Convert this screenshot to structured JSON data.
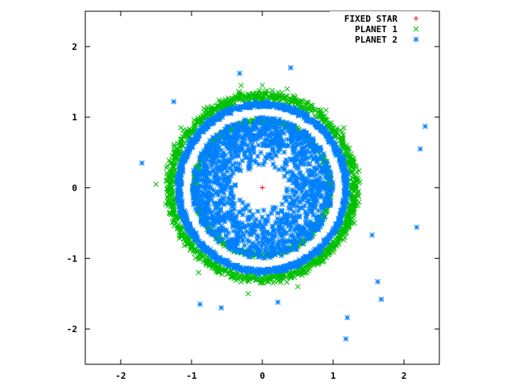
{
  "chart_data": {
    "type": "scatter",
    "title": "",
    "xlabel": "",
    "ylabel": "",
    "xlim": [
      -2.5,
      2.5
    ],
    "ylim": [
      -2.5,
      2.5
    ],
    "xticks": [
      -2,
      -1,
      0,
      1,
      2
    ],
    "yticks": [
      -2,
      -1,
      0,
      1,
      2
    ],
    "xtick_labels": [
      "-2",
      "-1",
      "0",
      "1",
      "2"
    ],
    "ytick_labels": [
      "-2",
      "-1",
      "0",
      "1",
      "2"
    ],
    "grid": false,
    "legend_position": "top-right",
    "series": [
      {
        "name": "FIXED STAR",
        "marker": "plus",
        "color": "#ff0000",
        "points": [
          [
            0,
            0
          ]
        ]
      },
      {
        "name": "PLANET 1",
        "marker": "cross",
        "color": "#00c000",
        "distribution": "ring",
        "ring_radii": [
          0.95,
          1.3
        ],
        "points": [
          [
            0.0,
            1.45
          ],
          [
            -0.3,
            1.45
          ],
          [
            0.35,
            1.4
          ],
          [
            -1.3,
            0.2
          ],
          [
            -1.5,
            0.05
          ],
          [
            1.3,
            -0.5
          ],
          [
            -0.2,
            -1.5
          ],
          [
            0.5,
            -1.4
          ],
          [
            -0.9,
            -1.2
          ],
          [
            1.15,
            0.85
          ],
          [
            -1.15,
            0.85
          ],
          [
            0.9,
            1.1
          ]
        ]
      },
      {
        "name": "PLANET 2",
        "marker": "star",
        "color": "#0080ff",
        "distribution": "disk_and_ring",
        "disk_radii": [
          0.3,
          1.0
        ],
        "ring_radius": 1.18,
        "points": [
          [
            0.4,
            1.7
          ],
          [
            -0.32,
            1.62
          ],
          [
            -1.25,
            1.22
          ],
          [
            2.3,
            0.87
          ],
          [
            2.23,
            0.55
          ],
          [
            -1.7,
            0.35
          ],
          [
            2.18,
            -0.56
          ],
          [
            1.55,
            -0.67
          ],
          [
            1.63,
            -1.33
          ],
          [
            1.68,
            -1.58
          ],
          [
            1.2,
            -1.84
          ],
          [
            1.18,
            -2.14
          ],
          [
            -0.88,
            -1.65
          ],
          [
            -0.58,
            -1.7
          ],
          [
            0.22,
            -1.62
          ]
        ]
      }
    ]
  }
}
